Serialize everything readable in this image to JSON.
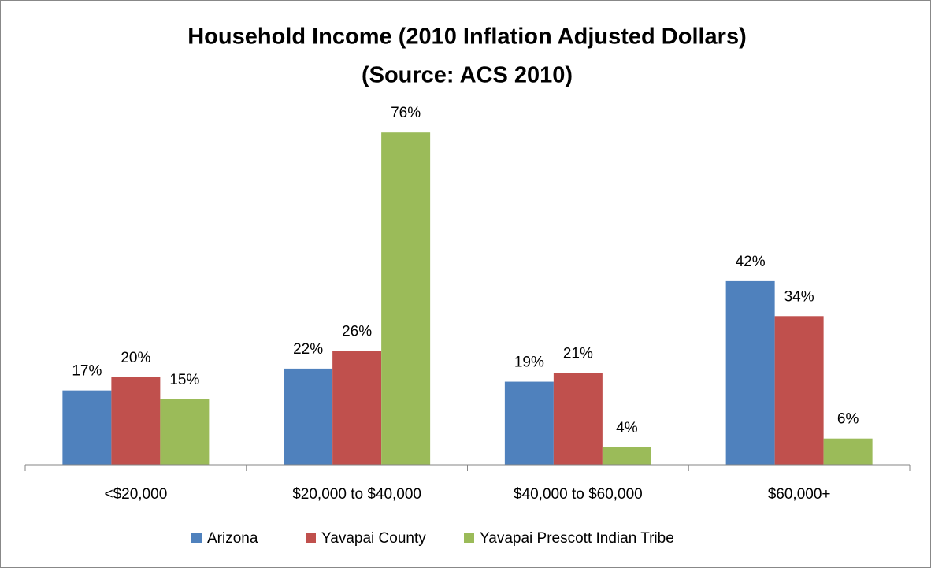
{
  "chart_data": {
    "type": "bar",
    "title": [
      "Household Income (2010 Inflation Adjusted Dollars)",
      "(Source: ACS 2010)"
    ],
    "categories": [
      "<$20,000",
      "$20,000 to $40,000",
      "$40,000 to $60,000",
      "$60,000+"
    ],
    "series": [
      {
        "name": "Arizona",
        "color": "#4f81bd",
        "values": [
          17,
          22,
          19,
          42
        ],
        "value_labels": [
          "17%",
          "22%",
          "19%",
          "42%"
        ]
      },
      {
        "name": "Yavapai County",
        "color": "#c0504d",
        "values": [
          20,
          26,
          21,
          34
        ],
        "value_labels": [
          "20%",
          "26%",
          "21%",
          "34%"
        ]
      },
      {
        "name": "Yavapai Prescott Indian Tribe",
        "color": "#9bbb59",
        "values": [
          15,
          76,
          4,
          6
        ],
        "value_labels": [
          "15%",
          "76%",
          "4%",
          "6%"
        ]
      }
    ],
    "ylim": [
      0,
      80
    ],
    "legend": "bottom"
  }
}
